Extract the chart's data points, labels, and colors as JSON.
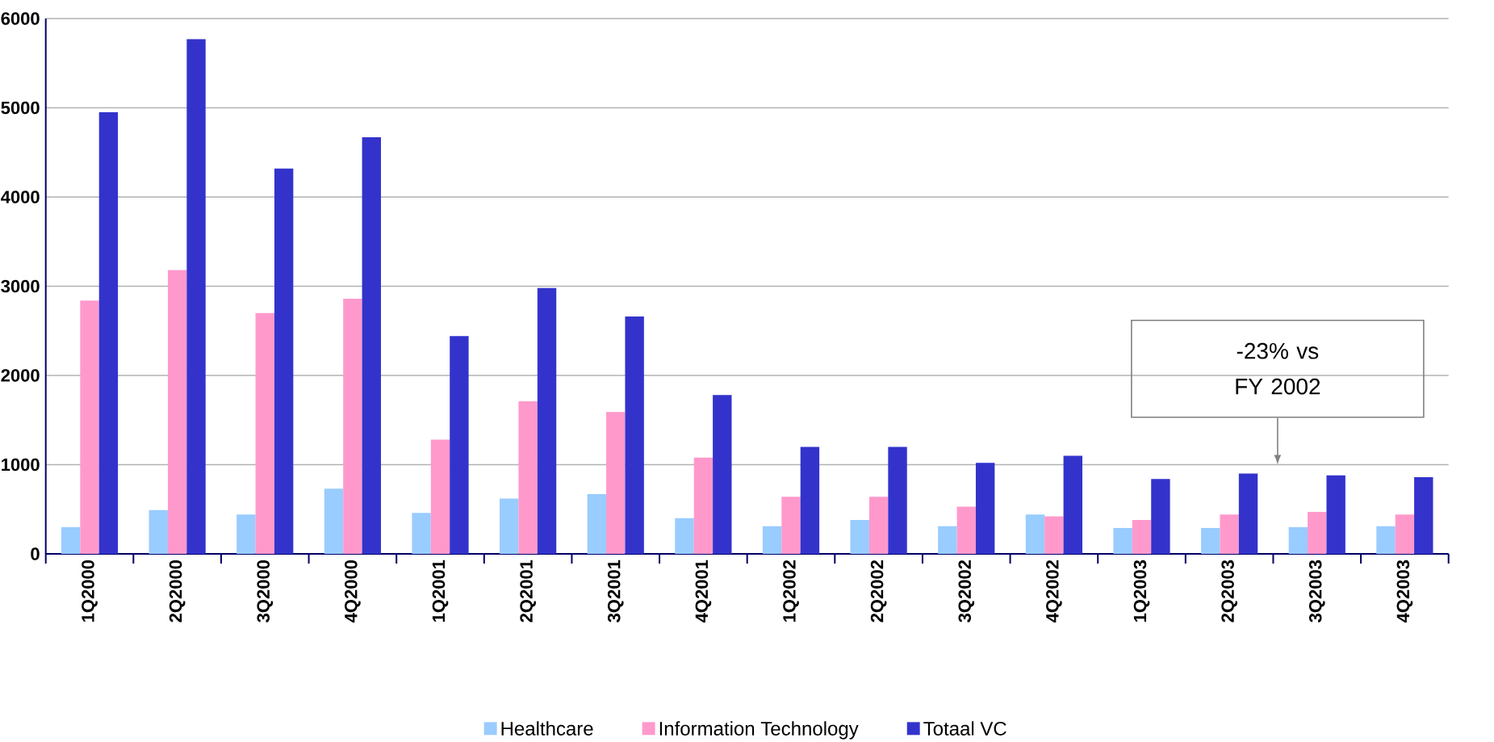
{
  "chart_data": {
    "type": "bar",
    "categories": [
      "1Q2000",
      "2Q2000",
      "3Q2000",
      "4Q2000",
      "1Q2001",
      "2Q2001",
      "3Q2001",
      "4Q2001",
      "1Q2002",
      "2Q2002",
      "3Q2002",
      "4Q2002",
      "1Q2003",
      "2Q2003",
      "3Q2003",
      "4Q2003"
    ],
    "series": [
      {
        "name": "Healthcare",
        "color": "#99ccff",
        "values": [
          300,
          490,
          440,
          730,
          460,
          620,
          670,
          400,
          310,
          380,
          310,
          440,
          290,
          290,
          300,
          310
        ]
      },
      {
        "name": "Information Technology",
        "color": "#ff99cc",
        "values": [
          2840,
          3180,
          2700,
          2860,
          1280,
          1710,
          1590,
          1080,
          640,
          640,
          530,
          420,
          380,
          440,
          470,
          440
        ]
      },
      {
        "name": "Totaal VC",
        "color": "#3333cc",
        "values": [
          4950,
          5770,
          4320,
          4670,
          2440,
          2980,
          2660,
          1780,
          1200,
          1200,
          1020,
          1100,
          840,
          900,
          880,
          860
        ]
      }
    ],
    "ylim": [
      0,
      6000
    ],
    "yticks": [
      0,
      1000,
      2000,
      3000,
      4000,
      5000,
      6000
    ],
    "grid": "y",
    "legend": "bottom",
    "annotations": [
      "-23% vs FY 2002"
    ]
  }
}
